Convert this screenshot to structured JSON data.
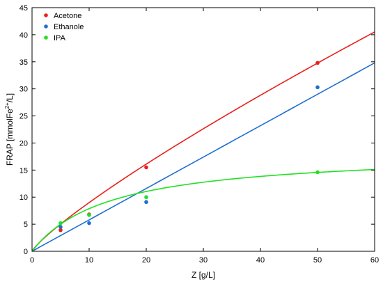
{
  "chart_data": {
    "type": "scatter",
    "xlabel": "Z [g/L]",
    "ylabel": "FRAP [mmolFe²⁺/L]",
    "ylabel_parts": {
      "pre": "FRAP [mmolFe",
      "sup": "2+",
      "post": "/L]"
    },
    "xlim": [
      0,
      60
    ],
    "ylim": [
      0,
      45
    ],
    "xticks": [
      0,
      10,
      20,
      30,
      40,
      50,
      60
    ],
    "yticks": [
      0,
      5,
      10,
      15,
      20,
      25,
      30,
      35,
      40,
      45
    ],
    "grid": false,
    "legend_position": "top-left",
    "series": [
      {
        "name": "Acetone",
        "color": "#e8201c",
        "points": [
          [
            5,
            3.9
          ],
          [
            10,
            6.8
          ],
          [
            20,
            15.5
          ],
          [
            50,
            34.8
          ]
        ],
        "fit": {
          "model": "y = a*x^b",
          "a": 1.3,
          "b": 0.84
        }
      },
      {
        "name": "Ethanole",
        "color": "#1f6fd1",
        "points": [
          [
            5,
            4.5
          ],
          [
            10,
            5.2
          ],
          [
            20,
            9.1
          ],
          [
            50,
            30.3
          ]
        ],
        "fit": {
          "model": "y = a*x",
          "a": 0.58
        }
      },
      {
        "name": "IPA",
        "color": "#22e022",
        "points": [
          [
            5,
            5.2
          ],
          [
            10,
            6.7
          ],
          [
            20,
            10.0
          ],
          [
            50,
            14.6
          ]
        ],
        "fit": {
          "model": "y = a*x/(b+x)",
          "a": 18.5,
          "b": 13.5
        }
      }
    ]
  }
}
